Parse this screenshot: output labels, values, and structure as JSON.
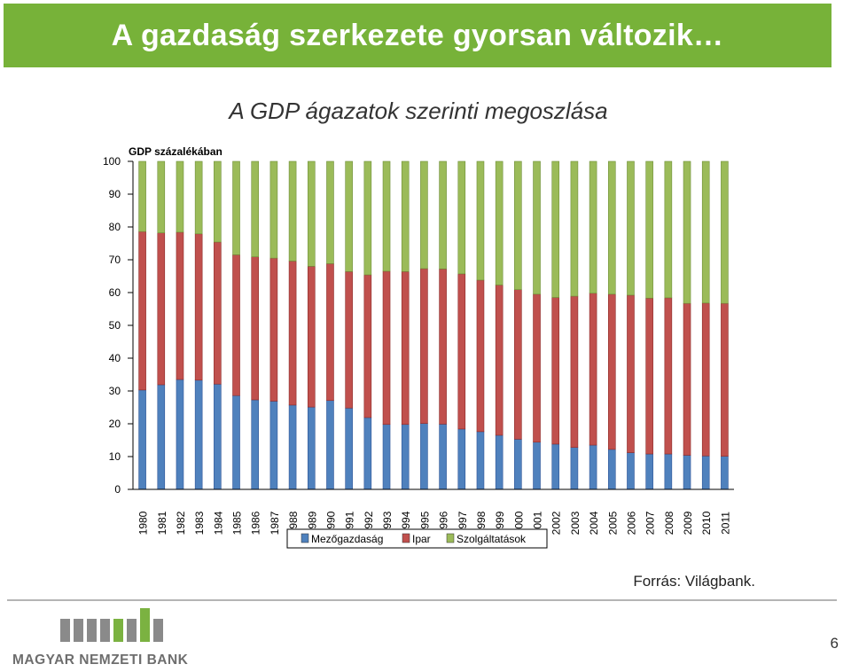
{
  "banner": {
    "title": "A gazdaság szerkezete gyorsan változik…"
  },
  "chart_data": {
    "type": "bar",
    "stacked": true,
    "title": "A GDP ágazatok szerinti megoszlása",
    "ylabel": "GDP százalékában",
    "ylim": [
      0,
      100
    ],
    "yticks": [
      0,
      10,
      20,
      30,
      40,
      50,
      60,
      70,
      80,
      90,
      100
    ],
    "grid": false,
    "legend_position": "bottom",
    "categories": [
      "1980",
      "1981",
      "1982",
      "1983",
      "1984",
      "1985",
      "1986",
      "1987",
      "1988",
      "1989",
      "1990",
      "1991",
      "1992",
      "1993",
      "1994",
      "1995",
      "1996",
      "1997",
      "1998",
      "1999",
      "2000",
      "2001",
      "2002",
      "2003",
      "2004",
      "2005",
      "2006",
      "2007",
      "2008",
      "2009",
      "2010",
      "2011"
    ],
    "series": [
      {
        "name": "Mezőgazdaság",
        "color": "#4f81bd",
        "values": [
          30.3,
          31.9,
          33.5,
          33.3,
          32.1,
          28.6,
          27.3,
          26.9,
          25.7,
          25.1,
          27.1,
          24.8,
          21.9,
          19.8,
          19.8,
          20.1,
          19.9,
          18.4,
          17.6,
          16.5,
          15.3,
          14.4,
          13.8,
          12.8,
          13.5,
          12.2,
          11.2,
          10.8,
          10.8,
          10.4,
          10.2,
          10.1
        ]
      },
      {
        "name": "Ipar",
        "color": "#c0504d",
        "values": [
          48.3,
          46.3,
          44.9,
          44.6,
          43.3,
          42.9,
          43.6,
          43.6,
          43.9,
          42.9,
          41.7,
          41.6,
          43.5,
          46.7,
          46.6,
          47.2,
          47.3,
          47.3,
          46.2,
          45.8,
          45.6,
          45.1,
          44.7,
          46.1,
          46.3,
          47.3,
          48.0,
          47.5,
          47.6,
          46.3,
          46.6,
          46.6
        ]
      },
      {
        "name": "Szolgáltatások",
        "color": "#9bbb59",
        "values": [
          21.4,
          21.8,
          21.6,
          22.1,
          24.6,
          28.5,
          29.1,
          29.5,
          30.4,
          32.0,
          31.2,
          33.6,
          34.6,
          33.5,
          33.6,
          32.7,
          32.8,
          34.3,
          36.2,
          37.7,
          39.1,
          40.5,
          41.5,
          41.1,
          40.2,
          40.5,
          40.8,
          41.7,
          41.6,
          43.3,
          43.2,
          43.3
        ]
      }
    ],
    "source": "Forrás: Világbank."
  },
  "footer": {
    "logo_text": "MAGYAR NEMZETI BANK",
    "page_number": "6"
  }
}
